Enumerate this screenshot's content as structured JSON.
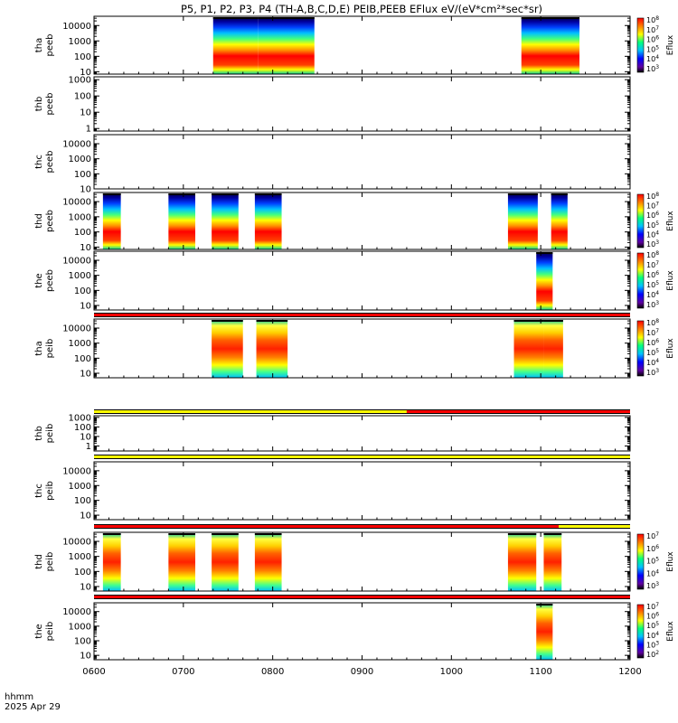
{
  "title": "P5, P1, P2, P3, P4 (TH-A,B,C,D,E) PEIB,PEEB EFlux eV/(eV*cm²*sec*sr)",
  "xaxis": {
    "ticks": [
      "0600",
      "0700",
      "0800",
      "0900",
      "1000",
      "1100",
      "1200"
    ],
    "label_line1": "hhmm",
    "label_line2": "2025 Apr 29"
  },
  "colors": {
    "flag_red": "#ff0000",
    "flag_yellow": "#ffff00",
    "flag_black": "#000000"
  },
  "chart_data": [
    {
      "type": "heatmap",
      "probe_label": "tha",
      "instrument_label": "peeb",
      "ylim": [
        7,
        40000
      ],
      "yscale": "log",
      "yticks": [
        "10",
        "100",
        "1000",
        "10000"
      ],
      "colorbar": {
        "label": "Eflux",
        "ticks": [
          "10³",
          "10⁴",
          "10⁵",
          "10⁶",
          "10⁷",
          "10⁸"
        ]
      },
      "intervals": [
        [
          "0720",
          "0750"
        ],
        [
          "0750",
          "0828"
        ],
        [
          "1047",
          "1126"
        ]
      ],
      "kind": "electron"
    },
    {
      "type": "heatmap",
      "probe_label": "thb",
      "instrument_label": "peeb",
      "ylim": [
        0.7,
        1500
      ],
      "yscale": "log",
      "yticks": [
        "1",
        "10",
        "100",
        "1000"
      ],
      "intervals": []
    },
    {
      "type": "heatmap",
      "probe_label": "thc",
      "instrument_label": "peeb",
      "ylim": [
        10,
        40000
      ],
      "yscale": "log",
      "yticks": [
        "10",
        "100",
        "1000",
        "10000"
      ],
      "intervals": []
    },
    {
      "type": "heatmap",
      "probe_label": "thd",
      "instrument_label": "peeb",
      "ylim": [
        7,
        40000
      ],
      "yscale": "log",
      "yticks": [
        "10",
        "100",
        "1000",
        "10000"
      ],
      "colorbar": {
        "label": "Eflux",
        "ticks": [
          "10³",
          "10⁴",
          "10⁵",
          "10⁶",
          "10⁷",
          "10⁸"
        ]
      },
      "intervals": [
        [
          "0606",
          "0618"
        ],
        [
          "0650",
          "0708"
        ],
        [
          "0719",
          "0737"
        ],
        [
          "0748",
          "0806"
        ],
        [
          "1038",
          "1058"
        ],
        [
          "1107",
          "1118"
        ]
      ],
      "kind": "electron"
    },
    {
      "type": "heatmap",
      "probe_label": "the",
      "instrument_label": "peeb",
      "ylim": [
        5,
        40000
      ],
      "yscale": "log",
      "yticks": [
        "10",
        "100",
        "1000",
        "10000"
      ],
      "colorbar": {
        "label": "Eflux",
        "ticks": [
          "10³",
          "10⁴",
          "10⁵",
          "10⁶",
          "10⁷",
          "10⁸"
        ]
      },
      "intervals": [
        [
          "1057",
          "1108"
        ]
      ],
      "kind": "electron"
    },
    {
      "type": "heatmap",
      "probe_label": "tha",
      "instrument_label": "peib",
      "ylim": [
        5,
        40000
      ],
      "yscale": "log",
      "yticks": [
        "10",
        "100",
        "1000",
        "10000"
      ],
      "colorbar": {
        "label": "Eflux",
        "ticks": [
          "10³",
          "10⁴",
          "10⁵",
          "10⁶",
          "10⁷",
          "10⁸"
        ]
      },
      "intervals": [
        [
          "0719",
          "0740"
        ],
        [
          "0749",
          "0810"
        ],
        [
          "1042",
          "1102"
        ],
        [
          "1102",
          "1115"
        ]
      ],
      "kind": "ion"
    },
    {
      "type": "heatmap",
      "probe_label": "thb",
      "instrument_label": "peib",
      "ylim": [
        0.3,
        1500
      ],
      "yscale": "log",
      "yticks": [
        "1",
        "10",
        "100",
        "1000"
      ],
      "intervals": []
    },
    {
      "type": "heatmap",
      "probe_label": "thc",
      "instrument_label": "peib",
      "ylim": [
        5,
        40000
      ],
      "yscale": "log",
      "yticks": [
        "10",
        "100",
        "1000",
        "10000"
      ],
      "intervals": []
    },
    {
      "type": "heatmap",
      "probe_label": "thd",
      "instrument_label": "peib",
      "ylim": [
        5,
        40000
      ],
      "yscale": "log",
      "yticks": [
        "10",
        "100",
        "1000",
        "10000"
      ],
      "colorbar": {
        "label": "Eflux",
        "ticks": [
          "10³",
          "10⁴",
          "10⁵",
          "10⁶",
          "10⁷"
        ]
      },
      "intervals": [
        [
          "0606",
          "0618"
        ],
        [
          "0650",
          "0708"
        ],
        [
          "0719",
          "0737"
        ],
        [
          "0748",
          "0806"
        ],
        [
          "1038",
          "1057"
        ],
        [
          "1102",
          "1114"
        ]
      ],
      "kind": "ion"
    },
    {
      "type": "heatmap",
      "probe_label": "the",
      "instrument_label": "peib",
      "ylim": [
        5,
        40000
      ],
      "yscale": "log",
      "yticks": [
        "10",
        "100",
        "1000",
        "10000"
      ],
      "colorbar": {
        "label": "Eflux",
        "ticks": [
          "10²",
          "10³",
          "10⁴",
          "10⁵",
          "10⁶",
          "10⁷"
        ]
      },
      "intervals": [
        [
          "1057",
          "1108"
        ]
      ],
      "kind": "ion"
    }
  ]
}
